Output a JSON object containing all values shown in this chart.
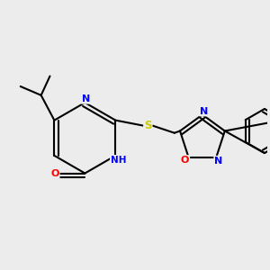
{
  "background_color": "#ececec",
  "atom_colors": {
    "N": "#0000ff",
    "O": "#ff0000",
    "S": "#cccc00",
    "C": "#000000"
  },
  "figsize": [
    3.0,
    3.0
  ],
  "dpi": 100
}
